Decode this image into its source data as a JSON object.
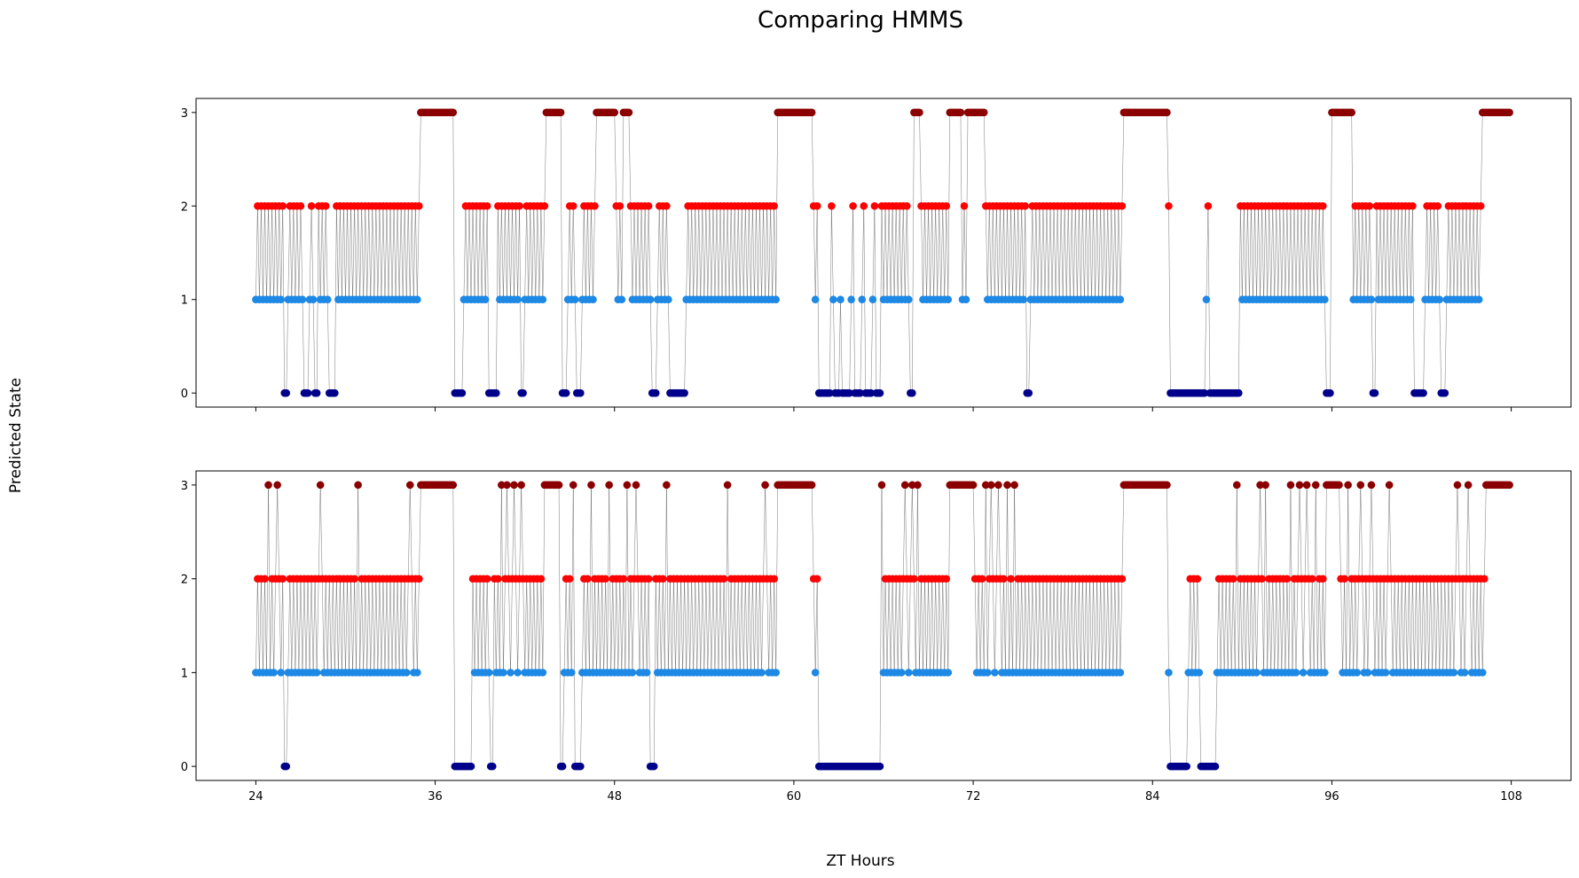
{
  "figure": {
    "title": "Comparing HMMS",
    "xlabel": "ZT Hours",
    "ylabel": "Predicted State"
  },
  "chart_data": [
    {
      "type": "scatter",
      "panel": "top",
      "xlim": [
        20,
        112
      ],
      "ylim": [
        -0.15,
        3.15
      ],
      "xticks": [
        24,
        36,
        48,
        60,
        72,
        84,
        96,
        108
      ],
      "yticks": [
        0,
        1,
        2,
        3
      ],
      "show_xtick_labels": false,
      "connect_line": true,
      "state_colors": {
        "0": "#00008b",
        "1": "#1e88e5",
        "2": "#ff0000",
        "3": "#8b0000"
      },
      "x_start": 24.0,
      "x_end": 108.0,
      "segments": [
        {
          "x0": 24.0,
          "x1": 25.9,
          "pattern": "alt12"
        },
        {
          "x0": 25.9,
          "x1": 26.1,
          "pattern": "s0"
        },
        {
          "x0": 26.1,
          "x1": 27.2,
          "pattern": "alt12"
        },
        {
          "x0": 27.2,
          "x1": 27.6,
          "pattern": "s0"
        },
        {
          "x0": 27.6,
          "x1": 27.9,
          "pattern": "alt12"
        },
        {
          "x0": 27.9,
          "x1": 28.2,
          "pattern": "s0"
        },
        {
          "x0": 28.2,
          "x1": 28.9,
          "pattern": "alt12"
        },
        {
          "x0": 28.9,
          "x1": 29.3,
          "pattern": "s0"
        },
        {
          "x0": 29.3,
          "x1": 35.0,
          "pattern": "alt12"
        },
        {
          "x0": 35.0,
          "x1": 37.2,
          "pattern": "s3"
        },
        {
          "x0": 37.2,
          "x1": 37.9,
          "pattern": "s0"
        },
        {
          "x0": 37.9,
          "x1": 39.5,
          "pattern": "alt12"
        },
        {
          "x0": 39.5,
          "x1": 40.1,
          "pattern": "s0"
        },
        {
          "x0": 40.1,
          "x1": 41.7,
          "pattern": "alt12"
        },
        {
          "x0": 41.7,
          "x1": 41.9,
          "pattern": "s0"
        },
        {
          "x0": 41.9,
          "x1": 43.4,
          "pattern": "alt12"
        },
        {
          "x0": 43.4,
          "x1": 44.4,
          "pattern": "s3"
        },
        {
          "x0": 44.4,
          "x1": 44.8,
          "pattern": "s0"
        },
        {
          "x0": 44.8,
          "x1": 45.4,
          "pattern": "alt12"
        },
        {
          "x0": 45.4,
          "x1": 45.8,
          "pattern": "s0"
        },
        {
          "x0": 45.8,
          "x1": 46.7,
          "pattern": "alt12"
        },
        {
          "x0": 46.7,
          "x1": 48.0,
          "pattern": "s3"
        },
        {
          "x0": 48.0,
          "x1": 48.5,
          "pattern": "alt12"
        },
        {
          "x0": 48.5,
          "x1": 49.0,
          "pattern": "s3"
        },
        {
          "x0": 49.0,
          "x1": 50.5,
          "pattern": "alt12"
        },
        {
          "x0": 50.5,
          "x1": 50.8,
          "pattern": "s0"
        },
        {
          "x0": 50.8,
          "x1": 51.6,
          "pattern": "alt12"
        },
        {
          "x0": 51.6,
          "x1": 52.7,
          "pattern": "s0"
        },
        {
          "x0": 52.7,
          "x1": 58.8,
          "pattern": "alt12"
        },
        {
          "x0": 58.8,
          "x1": 61.3,
          "pattern": "s3"
        },
        {
          "x0": 61.3,
          "x1": 61.6,
          "pattern": "alt12"
        },
        {
          "x0": 61.6,
          "x1": 62.5,
          "pattern": "s0"
        },
        {
          "x0": 62.5,
          "x1": 62.7,
          "pattern": "alt12"
        },
        {
          "x0": 62.7,
          "x1": 63.0,
          "pattern": "s0"
        },
        {
          "x0": 63.0,
          "x1": 63.2,
          "pattern": "alt12"
        },
        {
          "x0": 63.2,
          "x1": 63.8,
          "pattern": "s0"
        },
        {
          "x0": 63.8,
          "x1": 64.0,
          "pattern": "alt12"
        },
        {
          "x0": 64.0,
          "x1": 64.5,
          "pattern": "s0"
        },
        {
          "x0": 64.5,
          "x1": 64.7,
          "pattern": "alt12"
        },
        {
          "x0": 64.7,
          "x1": 65.2,
          "pattern": "s0"
        },
        {
          "x0": 65.2,
          "x1": 65.4,
          "pattern": "alt12"
        },
        {
          "x0": 65.4,
          "x1": 65.8,
          "pattern": "s0"
        },
        {
          "x0": 65.8,
          "x1": 67.7,
          "pattern": "alt12"
        },
        {
          "x0": 67.7,
          "x1": 68.0,
          "pattern": "s0"
        },
        {
          "x0": 68.0,
          "x1": 68.4,
          "pattern": "s3"
        },
        {
          "x0": 68.4,
          "x1": 70.4,
          "pattern": "alt12"
        },
        {
          "x0": 70.4,
          "x1": 71.2,
          "pattern": "s3"
        },
        {
          "x0": 71.2,
          "x1": 71.6,
          "pattern": "alt12"
        },
        {
          "x0": 71.6,
          "x1": 72.8,
          "pattern": "s3"
        },
        {
          "x0": 72.8,
          "x1": 75.5,
          "pattern": "alt12"
        },
        {
          "x0": 75.5,
          "x1": 75.8,
          "pattern": "s0"
        },
        {
          "x0": 75.8,
          "x1": 82.0,
          "pattern": "alt12"
        },
        {
          "x0": 82.0,
          "x1": 85.0,
          "pattern": "s3"
        },
        {
          "x0": 85.0,
          "x1": 85.2,
          "pattern": "s2"
        },
        {
          "x0": 85.2,
          "x1": 87.6,
          "pattern": "s0"
        },
        {
          "x0": 87.6,
          "x1": 87.8,
          "pattern": "alt12"
        },
        {
          "x0": 87.8,
          "x1": 89.8,
          "pattern": "s0"
        },
        {
          "x0": 89.8,
          "x1": 95.6,
          "pattern": "alt12"
        },
        {
          "x0": 95.6,
          "x1": 95.9,
          "pattern": "s0"
        },
        {
          "x0": 95.9,
          "x1": 97.4,
          "pattern": "s3"
        },
        {
          "x0": 97.4,
          "x1": 98.7,
          "pattern": "alt12"
        },
        {
          "x0": 98.7,
          "x1": 99.0,
          "pattern": "s0"
        },
        {
          "x0": 99.0,
          "x1": 101.5,
          "pattern": "alt12"
        },
        {
          "x0": 101.5,
          "x1": 102.2,
          "pattern": "s0"
        },
        {
          "x0": 102.2,
          "x1": 103.3,
          "pattern": "alt12"
        },
        {
          "x0": 103.3,
          "x1": 103.6,
          "pattern": "s0"
        },
        {
          "x0": 103.6,
          "x1": 106.0,
          "pattern": "alt12"
        },
        {
          "x0": 106.0,
          "x1": 108.0,
          "pattern": "s3"
        }
      ]
    },
    {
      "type": "scatter",
      "panel": "bottom",
      "xlim": [
        20,
        112
      ],
      "ylim": [
        -0.15,
        3.15
      ],
      "xticks": [
        24,
        36,
        48,
        60,
        72,
        84,
        96,
        108
      ],
      "yticks": [
        0,
        1,
        2,
        3
      ],
      "show_xtick_labels": true,
      "connect_line": true,
      "state_colors": {
        "0": "#00008b",
        "1": "#1e88e5",
        "2": "#ff0000",
        "3": "#8b0000"
      },
      "x_start": 24.0,
      "x_end": 108.0,
      "segments": [
        {
          "x0": 24.0,
          "x1": 25.9,
          "pattern": "alt12"
        },
        {
          "x0": 25.9,
          "x1": 26.1,
          "pattern": "s0"
        },
        {
          "x0": 26.1,
          "x1": 35.0,
          "pattern": "alt12"
        },
        {
          "x0": 35.0,
          "x1": 37.2,
          "pattern": "s3"
        },
        {
          "x0": 37.2,
          "x1": 38.5,
          "pattern": "s0"
        },
        {
          "x0": 38.5,
          "x1": 39.6,
          "pattern": "alt12"
        },
        {
          "x0": 39.6,
          "x1": 39.9,
          "pattern": "s0"
        },
        {
          "x0": 39.9,
          "x1": 43.3,
          "pattern": "alt12"
        },
        {
          "x0": 43.3,
          "x1": 44.3,
          "pattern": "s3"
        },
        {
          "x0": 44.3,
          "x1": 44.6,
          "pattern": "s0"
        },
        {
          "x0": 44.6,
          "x1": 45.3,
          "pattern": "alt12"
        },
        {
          "x0": 45.3,
          "x1": 45.8,
          "pattern": "s0"
        },
        {
          "x0": 45.8,
          "x1": 48.0,
          "pattern": "alt12"
        },
        {
          "x0": 48.0,
          "x1": 50.3,
          "pattern": "alt12"
        },
        {
          "x0": 50.3,
          "x1": 50.7,
          "pattern": "s0"
        },
        {
          "x0": 50.7,
          "x1": 58.8,
          "pattern": "alt12"
        },
        {
          "x0": 58.8,
          "x1": 61.3,
          "pattern": "s3"
        },
        {
          "x0": 61.3,
          "x1": 61.6,
          "pattern": "alt12"
        },
        {
          "x0": 61.6,
          "x1": 65.8,
          "pattern": "s0"
        },
        {
          "x0": 65.8,
          "x1": 70.4,
          "pattern": "alt12"
        },
        {
          "x0": 70.4,
          "x1": 72.0,
          "pattern": "s3"
        },
        {
          "x0": 72.0,
          "x1": 82.0,
          "pattern": "alt12"
        },
        {
          "x0": 82.0,
          "x1": 85.0,
          "pattern": "s3"
        },
        {
          "x0": 85.0,
          "x1": 85.2,
          "pattern": "s1"
        },
        {
          "x0": 85.2,
          "x1": 86.3,
          "pattern": "s0"
        },
        {
          "x0": 86.3,
          "x1": 87.2,
          "pattern": "alt12"
        },
        {
          "x0": 87.2,
          "x1": 88.3,
          "pattern": "s0"
        },
        {
          "x0": 88.3,
          "x1": 95.6,
          "pattern": "alt12"
        },
        {
          "x0": 95.6,
          "x1": 96.6,
          "pattern": "s3"
        },
        {
          "x0": 96.6,
          "x1": 106.3,
          "pattern": "alt12"
        },
        {
          "x0": 106.3,
          "x1": 108.0,
          "pattern": "s3"
        }
      ],
      "spikes3": [
        24.9,
        25.4,
        26.0,
        28.3,
        30.8,
        34.3,
        40.4,
        40.8,
        41.3,
        41.8,
        45.2,
        46.4,
        47.6,
        48.8,
        49.4,
        51.5,
        55.5,
        58.1,
        65.9,
        67.4,
        67.9,
        68.3,
        72.8,
        73.2,
        73.7,
        74.3,
        74.8,
        89.7,
        91.2,
        91.6,
        93.3,
        93.8,
        94.3,
        94.9,
        97.1,
        97.9,
        98.6,
        99.8,
        104.4,
        105.1
      ]
    }
  ]
}
